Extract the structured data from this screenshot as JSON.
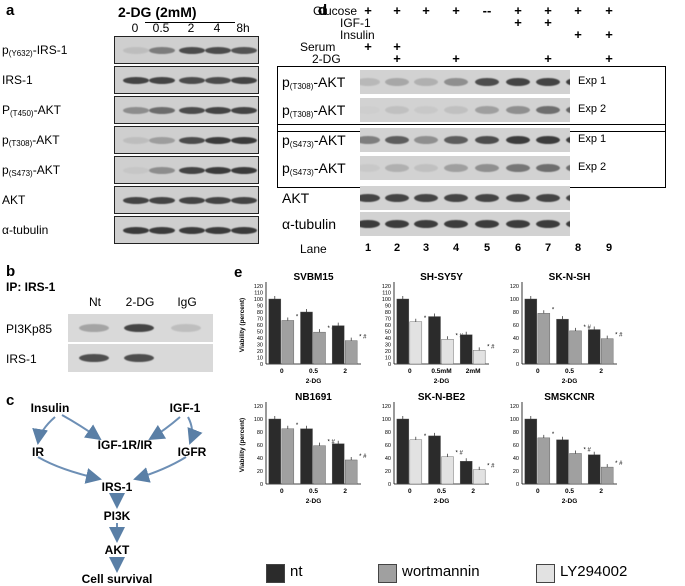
{
  "panel_a": {
    "label": "a",
    "treatment_header": "2-DG (2mM)",
    "timepoints": [
      "0",
      "0.5",
      "2",
      "4",
      "8h"
    ],
    "rows": [
      {
        "pre": "p",
        "sub": "(Y632)",
        "post": "-IRS-1"
      },
      {
        "pre": "IRS-1",
        "sub": "",
        "post": ""
      },
      {
        "pre": "P",
        "sub": "(T450)",
        "post": "-AKT"
      },
      {
        "pre": "p",
        "sub": "(T308)",
        "post": "-AKT"
      },
      {
        "pre": "p",
        "sub": "(S473)",
        "post": "-AKT"
      },
      {
        "pre": "AKT",
        "sub": "",
        "post": ""
      },
      {
        "pre": "α-tubulin",
        "sub": "",
        "post": ""
      }
    ]
  },
  "panel_b": {
    "label": "b",
    "ip_label": "IP: IRS-1",
    "columns": [
      "Nt",
      "2-DG",
      "IgG"
    ],
    "rows": [
      "PI3Kp85",
      "IRS-1"
    ]
  },
  "panel_c": {
    "label": "c",
    "nodes": {
      "insulin": "Insulin",
      "igf1": "IGF-1",
      "igf1r_ir": "IGF-1R/IR",
      "ir": "IR",
      "igfr": "IGFR",
      "irs1": "IRS-1",
      "pi3k": "PI3K",
      "akt": "AKT",
      "survival": "Cell survival"
    }
  },
  "panel_d": {
    "label": "d",
    "conditions": [
      {
        "name": "Glucose",
        "marks": [
          "+",
          "+",
          "+",
          "+",
          "--",
          "+",
          "+",
          "+",
          "+"
        ]
      },
      {
        "name": "IGF-1",
        "marks": [
          "",
          "",
          "",
          "",
          "",
          "+",
          "+",
          "",
          ""
        ]
      },
      {
        "name": "Insulin",
        "marks": [
          "",
          "",
          "",
          "",
          "",
          "",
          "",
          "+",
          "+"
        ]
      },
      {
        "name": "Serum",
        "marks": [
          "+",
          "+",
          "",
          "",
          "",
          "",
          "",
          "",
          ""
        ]
      },
      {
        "name": "2-DG",
        "marks": [
          "",
          "+",
          "",
          "+",
          "",
          "",
          "+",
          "",
          "+"
        ]
      }
    ],
    "rows": [
      {
        "pre": "p",
        "sub": "(T308)",
        "post": "-AKT",
        "exp": "Exp 1"
      },
      {
        "pre": "p",
        "sub": "(T308)",
        "post": "-AKT",
        "exp": "Exp 2"
      },
      {
        "pre": "p",
        "sub": "(S473)",
        "post": "-AKT",
        "exp": "Exp 1"
      },
      {
        "pre": "p",
        "sub": "(S473)",
        "post": "-AKT",
        "exp": "Exp 2"
      },
      {
        "pre": "AKT",
        "sub": "",
        "post": "",
        "exp": ""
      },
      {
        "pre": "α-tubulin",
        "sub": "",
        "post": "",
        "exp": ""
      }
    ],
    "lane_label": "Lane",
    "lanes": [
      "1",
      "2",
      "3",
      "4",
      "5",
      "6",
      "7",
      "8",
      "9"
    ]
  },
  "panel_e": {
    "label": "e",
    "legend": [
      {
        "name": "nt",
        "color": "#2b2b2b"
      },
      {
        "name": "wortmannin",
        "color": "#a0a0a0"
      },
      {
        "name": "LY294002",
        "color": "#e2e2e2"
      }
    ]
  },
  "chart_data": [
    {
      "type": "bar",
      "title": "SVBM15",
      "categories": [
        "0",
        "0.5",
        "2"
      ],
      "xlabel": "2-DG",
      "ylabel": "Viability (percent)",
      "ylim": [
        0,
        120
      ],
      "yticks": [
        0,
        10,
        20,
        30,
        40,
        50,
        60,
        70,
        80,
        90,
        100,
        110,
        120
      ],
      "series": [
        {
          "name": "nt",
          "values": [
            100,
            80,
            59
          ]
        },
        {
          "name": "wortmannin",
          "values": [
            67,
            49,
            36
          ]
        }
      ],
      "marks": [
        "*",
        "* #",
        "* #"
      ]
    },
    {
      "type": "bar",
      "title": "SH-SY5Y",
      "categories": [
        "0",
        "0.5mM",
        "2mM"
      ],
      "xlabel": "2-DG",
      "ylabel": "",
      "ylim": [
        0,
        120
      ],
      "yticks": [
        0,
        10,
        20,
        30,
        40,
        50,
        60,
        70,
        80,
        90,
        100,
        110,
        120
      ],
      "series": [
        {
          "name": "nt",
          "values": [
            100,
            73,
            45
          ]
        },
        {
          "name": "LY294002",
          "values": [
            65,
            38,
            21
          ]
        }
      ],
      "marks": [
        "*",
        "* #",
        "* #"
      ]
    },
    {
      "type": "bar",
      "title": "SK-N-SH",
      "categories": [
        "0",
        "0.5",
        "2"
      ],
      "xlabel": "2-DG",
      "ylabel": "",
      "ylim": [
        0,
        120
      ],
      "yticks": [
        0,
        20,
        40,
        60,
        80,
        100,
        120
      ],
      "series": [
        {
          "name": "nt",
          "values": [
            100,
            69,
            53
          ]
        },
        {
          "name": "wortmannin",
          "values": [
            78,
            51,
            39
          ]
        }
      ],
      "marks": [
        "*",
        "* #",
        "* #"
      ]
    },
    {
      "type": "bar",
      "title": "NB1691",
      "categories": [
        "0",
        "0.5",
        "2"
      ],
      "xlabel": "2-DG",
      "ylabel": "Viability (percent)",
      "ylim": [
        0,
        120
      ],
      "yticks": [
        0,
        20,
        40,
        60,
        80,
        100,
        120
      ],
      "series": [
        {
          "name": "nt",
          "values": [
            100,
            85,
            62
          ]
        },
        {
          "name": "wortmannin",
          "values": [
            85,
            59,
            37
          ]
        }
      ],
      "marks": [
        "*",
        "* #",
        "* #"
      ]
    },
    {
      "type": "bar",
      "title": "SK-N-BE2",
      "categories": [
        "0",
        "0.5",
        "2"
      ],
      "xlabel": "2-DG",
      "ylabel": "",
      "ylim": [
        0,
        120
      ],
      "yticks": [
        0,
        20,
        40,
        60,
        80,
        100,
        120
      ],
      "series": [
        {
          "name": "nt",
          "values": [
            100,
            74,
            35
          ]
        },
        {
          "name": "LY294002",
          "values": [
            68,
            42,
            22
          ]
        }
      ],
      "marks": [
        "*",
        "* #",
        "* #"
      ]
    },
    {
      "type": "bar",
      "title": "SMSKCNR",
      "categories": [
        "0",
        "0.5",
        "2"
      ],
      "xlabel": "2-DG",
      "ylabel": "",
      "ylim": [
        0,
        120
      ],
      "yticks": [
        0,
        20,
        40,
        60,
        80,
        100,
        120
      ],
      "series": [
        {
          "name": "nt",
          "values": [
            100,
            68,
            45
          ]
        },
        {
          "name": "wortmannin",
          "values": [
            71,
            47,
            26
          ]
        }
      ],
      "marks": [
        "*",
        "* #",
        "* #"
      ]
    }
  ]
}
